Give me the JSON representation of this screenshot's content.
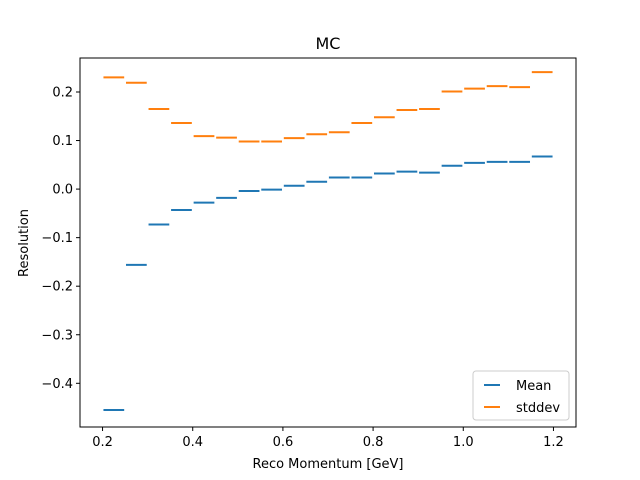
{
  "chart_data": {
    "type": "scatter",
    "title": "MC",
    "xlabel": "Reco Momentum [GeV]",
    "ylabel": "Resolution",
    "xlim": [
      0.15,
      1.25
    ],
    "ylim": [
      -0.49,
      0.27
    ],
    "xticks": [
      0.2,
      0.4,
      0.6,
      0.8,
      1.0,
      1.2
    ],
    "xtick_labels": [
      "0.2",
      "0.4",
      "0.6",
      "0.8",
      "1.0",
      "1.2"
    ],
    "yticks": [
      -0.4,
      -0.3,
      -0.2,
      -0.1,
      0.0,
      0.1,
      0.2
    ],
    "ytick_labels": [
      "−0.4",
      "−0.3",
      "−0.2",
      "−0.1",
      "0.0",
      "0.1",
      "0.2"
    ],
    "grid": false,
    "legend_position": "lower-right",
    "marker": "horizontal-bar",
    "bin_width": 0.05,
    "x": [
      0.225,
      0.275,
      0.325,
      0.375,
      0.425,
      0.475,
      0.525,
      0.575,
      0.625,
      0.675,
      0.725,
      0.775,
      0.825,
      0.875,
      0.925,
      0.975,
      1.025,
      1.075,
      1.125,
      1.175
    ],
    "series": [
      {
        "name": "Mean",
        "color": "#1f77b4",
        "values": [
          -0.455,
          -0.156,
          -0.073,
          -0.043,
          -0.028,
          -0.018,
          -0.004,
          -0.001,
          0.007,
          0.015,
          0.024,
          0.024,
          0.032,
          0.036,
          0.034,
          0.048,
          0.054,
          0.056,
          0.056,
          0.067
        ]
      },
      {
        "name": "stddev",
        "color": "#ff7f0e",
        "values": [
          0.23,
          0.219,
          0.165,
          0.136,
          0.109,
          0.106,
          0.098,
          0.098,
          0.105,
          0.113,
          0.117,
          0.136,
          0.148,
          0.163,
          0.165,
          0.201,
          0.207,
          0.212,
          0.21,
          0.241
        ]
      }
    ]
  }
}
